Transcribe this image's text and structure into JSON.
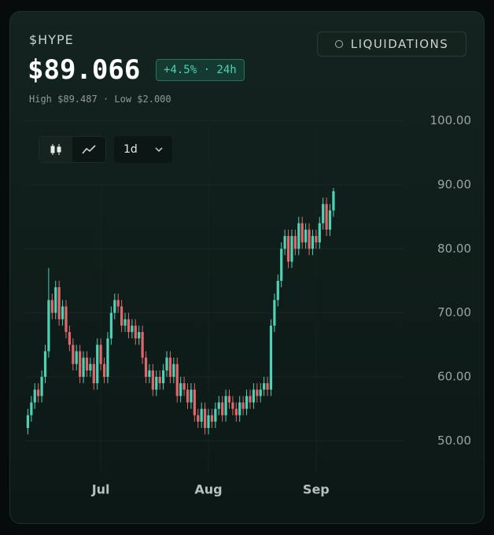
{
  "header": {
    "symbol": "$HYPE",
    "price": "$89.066",
    "change": "+4.5% · 24h",
    "range": "High $89.487 · Low $2.000"
  },
  "controls": {
    "liquidations": "LIQUIDATIONS",
    "interval": "1d"
  },
  "chart_data": {
    "type": "candlestick",
    "x": [
      -21,
      -20,
      -19,
      -18,
      -17,
      -16,
      -15,
      -14,
      -13,
      -12,
      -11,
      -10,
      -9,
      -8,
      -7,
      -6,
      -5,
      -4,
      -3,
      -2,
      -1,
      0,
      1,
      2,
      3,
      4,
      5,
      6,
      7,
      8,
      9,
      10,
      11,
      12,
      13,
      14,
      15,
      16,
      17,
      18,
      19,
      20,
      21,
      22,
      23,
      24,
      25,
      26,
      27,
      28,
      29,
      30,
      31,
      32,
      33,
      34,
      35,
      36,
      37,
      38,
      39,
      40,
      41,
      42,
      43,
      44,
      45,
      46,
      47,
      48,
      49,
      50,
      51,
      52,
      53,
      54,
      55,
      56,
      57,
      58,
      59,
      60,
      61,
      62,
      63,
      64,
      65,
      66,
      67
    ],
    "open": [
      52,
      54,
      56,
      58,
      57,
      60,
      64,
      72,
      70,
      74,
      69,
      71,
      67,
      65,
      62,
      64,
      60,
      63,
      61,
      62,
      59,
      65,
      62,
      60,
      66,
      70,
      72,
      71,
      68,
      69,
      67,
      68,
      66,
      67,
      63,
      60,
      61,
      58,
      60,
      59,
      61,
      63,
      60,
      62,
      57,
      59,
      58,
      56,
      58,
      54,
      53,
      55,
      52,
      54,
      53,
      55,
      56,
      54,
      57,
      56,
      55,
      54,
      56,
      55,
      57,
      56,
      58,
      57,
      58,
      59,
      58,
      68,
      72,
      75,
      80,
      82,
      78,
      82,
      80,
      84,
      81,
      83,
      80,
      82,
      81,
      84,
      87,
      83,
      86
    ],
    "high": [
      55,
      57,
      59,
      59,
      61,
      65,
      77,
      73,
      75,
      75,
      72,
      72,
      68,
      66,
      65,
      65,
      64,
      64,
      63,
      63,
      66,
      66,
      63,
      67,
      71,
      73,
      73,
      72,
      70,
      70,
      69,
      69,
      68,
      68,
      64,
      62,
      62,
      61,
      61,
      62,
      64,
      64,
      63,
      63,
      60,
      60,
      59,
      59,
      59,
      55,
      56,
      56,
      55,
      55,
      56,
      57,
      57,
      58,
      58,
      57,
      56,
      57,
      57,
      58,
      58,
      59,
      59,
      59,
      60,
      60,
      69,
      73,
      76,
      81,
      83,
      83,
      83,
      83,
      85,
      85,
      84,
      84,
      83,
      83,
      85,
      88,
      88,
      87,
      89.5
    ],
    "low": [
      51,
      53,
      55,
      56,
      56,
      59,
      63,
      69,
      69,
      68,
      68,
      66,
      64,
      61,
      61,
      59,
      59,
      60,
      60,
      58,
      58,
      61,
      59,
      59,
      65,
      69,
      70,
      67,
      67,
      66,
      66,
      65,
      65,
      62,
      59,
      59,
      57,
      57,
      58,
      58,
      60,
      59,
      59,
      56,
      56,
      57,
      55,
      55,
      53,
      52,
      52,
      51,
      51,
      52,
      52,
      54,
      53,
      53,
      55,
      54,
      53,
      53,
      54,
      54,
      55,
      55,
      56,
      56,
      57,
      57,
      57,
      67,
      71,
      74,
      79,
      77,
      77,
      79,
      79,
      80,
      80,
      79,
      79,
      80,
      80,
      83,
      82,
      82,
      85
    ],
    "close": [
      54,
      56,
      58,
      57,
      60,
      64,
      72,
      70,
      74,
      69,
      71,
      67,
      65,
      62,
      64,
      60,
      63,
      61,
      62,
      59,
      65,
      62,
      60,
      66,
      70,
      72,
      71,
      68,
      69,
      67,
      68,
      66,
      67,
      63,
      60,
      61,
      58,
      60,
      59,
      61,
      63,
      60,
      62,
      57,
      59,
      58,
      56,
      58,
      54,
      53,
      55,
      52,
      54,
      53,
      55,
      56,
      54,
      57,
      56,
      55,
      54,
      56,
      55,
      57,
      56,
      58,
      57,
      58,
      59,
      58,
      68,
      72,
      75,
      80,
      82,
      78,
      82,
      80,
      84,
      81,
      83,
      80,
      82,
      81,
      84,
      87,
      83,
      86,
      89
    ],
    "up_color": "#4fd1b5",
    "down_color": "#e0686b",
    "xlim": [
      -22,
      72
    ],
    "xticks": [
      {
        "value": 0,
        "label": "Jul"
      },
      {
        "value": 31,
        "label": "Aug"
      },
      {
        "value": 62,
        "label": "Sep"
      }
    ],
    "ylim": [
      45,
      104
    ],
    "yticks": [
      {
        "value": 50,
        "label": "50.00"
      },
      {
        "value": 60,
        "label": "60.00"
      },
      {
        "value": 70,
        "label": "70.00"
      },
      {
        "value": 80,
        "label": "80.00"
      },
      {
        "value": 90,
        "label": "90.00"
      },
      {
        "value": 100,
        "label": "100.00"
      }
    ],
    "grid": true
  }
}
